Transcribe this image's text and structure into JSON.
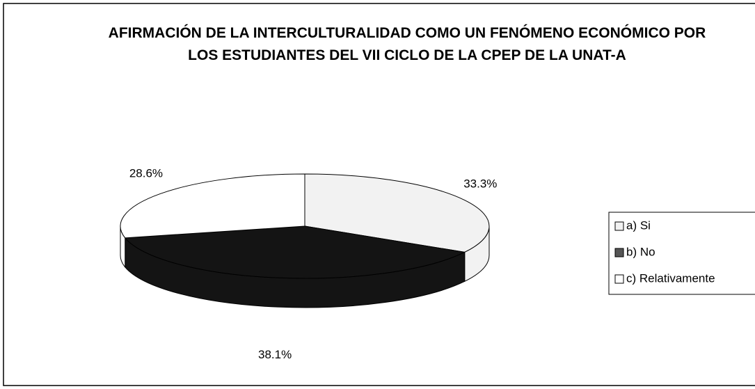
{
  "chart_data": {
    "type": "pie3d",
    "title": "AFIRMACIÓN DE LA INTERCULTURALIDAD COMO UN FENÓMENO ECONÓMICO POR LOS ESTUDIANTES DEL VII CICLO DE LA CPEP DE LA UNAT-A",
    "categories": [
      "a) Si",
      "b) No",
      "c) Relativamente"
    ],
    "values": [
      33.3,
      38.1,
      28.6
    ],
    "value_labels": [
      "33.3%",
      "38.1%",
      "28.6%"
    ],
    "colors": [
      "#f2f2f2",
      "#141414",
      "#ffffff"
    ],
    "legend": "right"
  }
}
